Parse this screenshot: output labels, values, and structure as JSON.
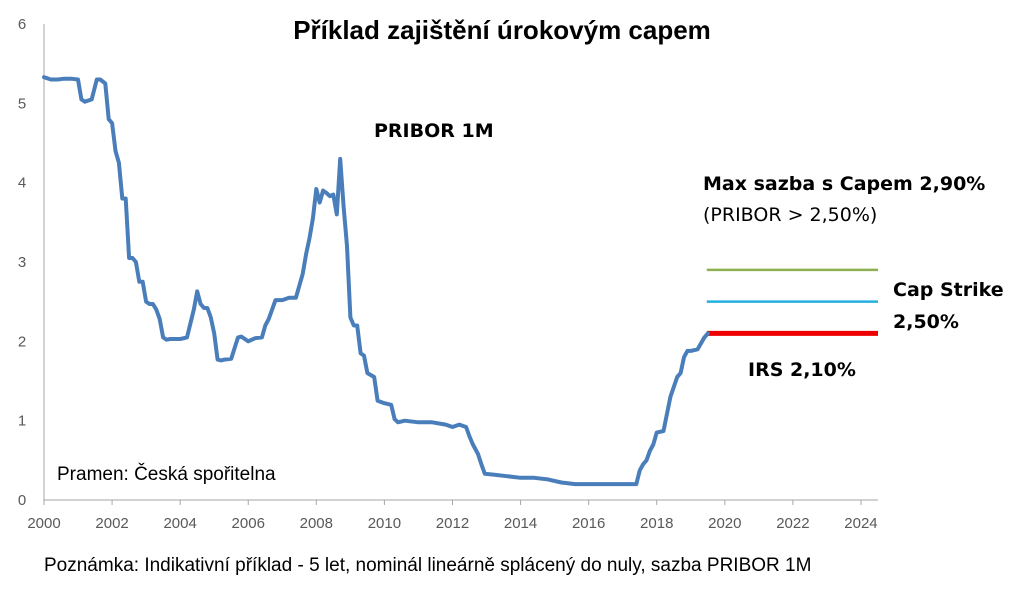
{
  "chart_data": {
    "type": "line",
    "title": "Příklad zajištění úrokovým capem",
    "xlabel": "",
    "ylabel": "",
    "xlim": [
      2000,
      2024.5
    ],
    "ylim": [
      0,
      6
    ],
    "grid": false,
    "x_ticks": [
      "2000",
      "2002",
      "2004",
      "2006",
      "2008",
      "2010",
      "2012",
      "2014",
      "2016",
      "2018",
      "2020",
      "2022",
      "2024"
    ],
    "y_ticks": [
      "0",
      "1",
      "2",
      "3",
      "4",
      "5",
      "6"
    ],
    "series": [
      {
        "name": "PRIBOR 1M",
        "color": "#4a7ebb",
        "x": [
          2000.0,
          2000.2,
          2000.4,
          2000.6,
          2000.8,
          2001.0,
          2001.1,
          2001.2,
          2001.4,
          2001.55,
          2001.65,
          2001.8,
          2001.9,
          2002.0,
          2002.1,
          2002.2,
          2002.3,
          2002.4,
          2002.5,
          2002.6,
          2002.7,
          2002.8,
          2002.9,
          2003.0,
          2003.1,
          2003.2,
          2003.3,
          2003.4,
          2003.5,
          2003.6,
          2003.7,
          2003.8,
          2004.0,
          2004.2,
          2004.4,
          2004.5,
          2004.6,
          2004.7,
          2004.8,
          2004.9,
          2005.0,
          2005.1,
          2005.2,
          2005.3,
          2005.5,
          2005.7,
          2005.8,
          2006.0,
          2006.2,
          2006.4,
          2006.5,
          2006.6,
          2006.8,
          2007.0,
          2007.2,
          2007.4,
          2007.6,
          2007.7,
          2007.8,
          2007.9,
          2008.0,
          2008.1,
          2008.2,
          2008.3,
          2008.4,
          2008.5,
          2008.6,
          2008.7,
          2008.8,
          2008.9,
          2009.0,
          2009.1,
          2009.2,
          2009.3,
          2009.4,
          2009.5,
          2009.7,
          2009.8,
          2010.0,
          2010.2,
          2010.3,
          2010.4,
          2010.6,
          2011.0,
          2011.4,
          2011.8,
          2012.0,
          2012.2,
          2012.4,
          2012.5,
          2012.6,
          2012.75,
          2012.85,
          2012.95,
          2013.2,
          2013.6,
          2014.0,
          2014.4,
          2014.8,
          2015.2,
          2015.6,
          2016.0,
          2016.4,
          2016.8,
          2017.2,
          2017.4,
          2017.5,
          2017.6,
          2017.7,
          2017.8,
          2017.9,
          2018.0,
          2018.2,
          2018.4,
          2018.6,
          2018.7,
          2018.8,
          2018.9,
          2019.0,
          2019.2,
          2019.4,
          2019.5
        ],
        "y": [
          5.33,
          5.3,
          5.3,
          5.31,
          5.31,
          5.3,
          5.05,
          5.02,
          5.05,
          5.3,
          5.3,
          5.25,
          4.8,
          4.75,
          4.4,
          4.25,
          3.8,
          3.8,
          3.05,
          3.05,
          3.0,
          2.75,
          2.75,
          2.5,
          2.47,
          2.47,
          2.4,
          2.28,
          2.05,
          2.02,
          2.03,
          2.03,
          2.03,
          2.05,
          2.4,
          2.63,
          2.47,
          2.42,
          2.42,
          2.3,
          2.1,
          1.77,
          1.76,
          1.77,
          1.78,
          2.05,
          2.06,
          2.0,
          2.04,
          2.05,
          2.2,
          2.28,
          2.52,
          2.52,
          2.55,
          2.55,
          2.85,
          3.1,
          3.3,
          3.55,
          3.92,
          3.75,
          3.9,
          3.87,
          3.83,
          3.85,
          3.6,
          4.3,
          3.7,
          3.2,
          2.3,
          2.2,
          2.2,
          1.85,
          1.82,
          1.6,
          1.55,
          1.25,
          1.22,
          1.2,
          1.02,
          0.98,
          1.0,
          0.98,
          0.98,
          0.95,
          0.92,
          0.95,
          0.92,
          0.8,
          0.7,
          0.58,
          0.45,
          0.33,
          0.32,
          0.3,
          0.28,
          0.28,
          0.26,
          0.22,
          0.2,
          0.2,
          0.2,
          0.2,
          0.2,
          0.2,
          0.37,
          0.45,
          0.5,
          0.62,
          0.7,
          0.85,
          0.87,
          1.3,
          1.55,
          1.6,
          1.8,
          1.88,
          1.88,
          1.9,
          2.05,
          2.1
        ]
      }
    ],
    "levels": [
      {
        "name": "Max sazba s Capem",
        "value": 2.9,
        "x_start": 2019.5,
        "x_end": 2024.5,
        "color": "#8fb050"
      },
      {
        "name": "Cap Strike",
        "value": 2.5,
        "x_start": 2019.5,
        "x_end": 2024.5,
        "color": "#26b0e0"
      },
      {
        "name": "IRS",
        "value": 2.1,
        "x_start": 2019.5,
        "x_end": 2024.5,
        "color": "#ee0000"
      }
    ],
    "annotations": [
      {
        "text": "PRIBOR 1M",
        "color": "#2e75b6"
      },
      {
        "text": "Max sazba s Capem 2,90%",
        "color": "#8fc050"
      },
      {
        "text": "(PRIBOR > 2,50%)",
        "color": "#a4c884"
      },
      {
        "text": "Cap Strike",
        "color": "#26b0e0"
      },
      {
        "text": "2,50%",
        "color": "#26b0e0"
      },
      {
        "text": "IRS 2,10%",
        "color": "#ee0000"
      }
    ],
    "source": "Pramen: Česká spořitelna",
    "note": "Poznámka: Indikativní příklad - 5 let, nominál lineárně splácený do nuly, sazba PRIBOR 1M"
  }
}
